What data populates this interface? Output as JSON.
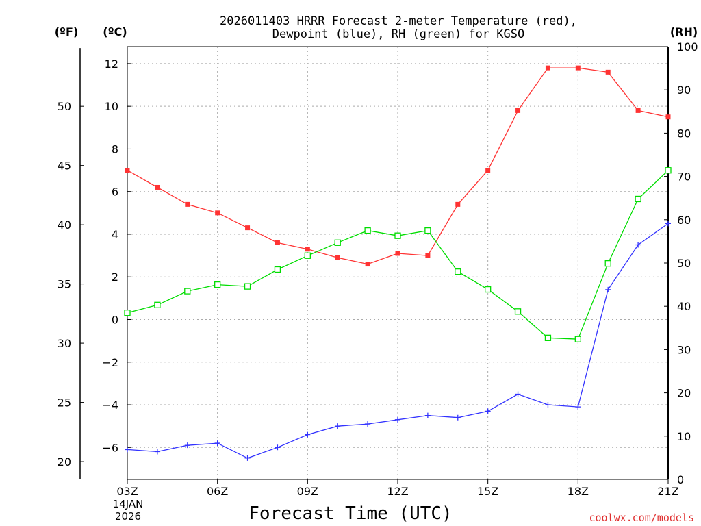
{
  "chart_data": {
    "type": "line",
    "title_line1": "2026011403 HRRR Forecast 2-meter Temperature (red),",
    "title_line2": "Dewpoint (blue), RH (green) for KGSO",
    "xlabel": "Forecast Time (UTC)",
    "date_day": "14JAN",
    "date_year": "2026",
    "credit": "coolwx.com/models",
    "unit_f": "(ºF)",
    "unit_c": "(ºC)",
    "unit_rh": "(RH)",
    "x_hours": [
      3,
      4,
      5,
      6,
      7,
      8,
      9,
      10,
      11,
      12,
      13,
      14,
      15,
      16,
      17,
      18,
      19,
      20,
      21
    ],
    "x_ticks": [
      {
        "hour": 3,
        "label": "03Z"
      },
      {
        "hour": 6,
        "label": "06Z"
      },
      {
        "hour": 9,
        "label": "09Z"
      },
      {
        "hour": 12,
        "label": "12Z"
      },
      {
        "hour": 15,
        "label": "15Z"
      },
      {
        "hour": 18,
        "label": "18Z"
      },
      {
        "hour": 21,
        "label": "21Z"
      }
    ],
    "xlim": [
      3,
      21
    ],
    "ylim_c": [
      -7.5,
      12.8
    ],
    "y_ticks_c": [
      -6,
      -4,
      -2,
      0,
      2,
      4,
      6,
      8,
      10,
      12
    ],
    "y_ticks_f": [
      20,
      25,
      30,
      35,
      40,
      45,
      50
    ],
    "y_ticks_rh": [
      0,
      10,
      20,
      30,
      40,
      50,
      60,
      70,
      80,
      90,
      100
    ],
    "rh_lim": [
      0,
      100
    ],
    "series": [
      {
        "name": "2-meter Temperature",
        "axis": "C",
        "color": "#ff3333",
        "marker": "filled-square",
        "values": [
          7.0,
          6.2,
          5.4,
          5.0,
          4.3,
          3.6,
          3.3,
          2.9,
          2.6,
          3.1,
          3.0,
          5.4,
          7.0,
          9.8,
          11.8,
          11.8,
          11.6,
          9.8,
          9.5
        ]
      },
      {
        "name": "Dewpoint",
        "axis": "C",
        "color": "#3333ff",
        "marker": "plus",
        "values": [
          -6.1,
          -6.2,
          -5.9,
          -5.8,
          -6.5,
          -6.0,
          -5.4,
          -5.0,
          -4.9,
          -4.7,
          -4.5,
          -4.6,
          -4.3,
          -3.5,
          -4.0,
          -4.1,
          1.4,
          3.5,
          4.5
        ]
      },
      {
        "name": "RH",
        "axis": "RH",
        "color": "#00dd00",
        "marker": "open-square",
        "values": [
          38.5,
          40.3,
          43.5,
          45.0,
          44.6,
          48.5,
          51.7,
          54.7,
          57.5,
          56.3,
          57.5,
          48.0,
          43.9,
          38.8,
          32.7,
          32.4,
          49.9,
          64.8,
          71.4
        ]
      }
    ]
  }
}
